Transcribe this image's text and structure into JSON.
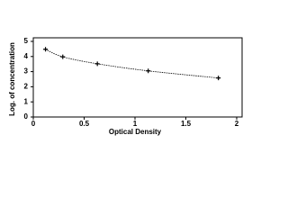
{
  "chart_data": {
    "type": "scatter",
    "x_label": "Optical Density",
    "y_label": "Log. of concentration",
    "x": [
      0.12,
      0.29,
      0.63,
      1.13,
      1.82
    ],
    "values": [
      4.48,
      3.98,
      3.52,
      3.05,
      2.58
    ],
    "color": "#000000",
    "xlim": [
      0,
      2
    ],
    "xticks": [
      0,
      0.5,
      1,
      1.5,
      2
    ],
    "ylim": [
      0,
      5
    ],
    "yticks": [
      0,
      1,
      2,
      3,
      4,
      5
    ],
    "grid": false,
    "curve": true
  }
}
